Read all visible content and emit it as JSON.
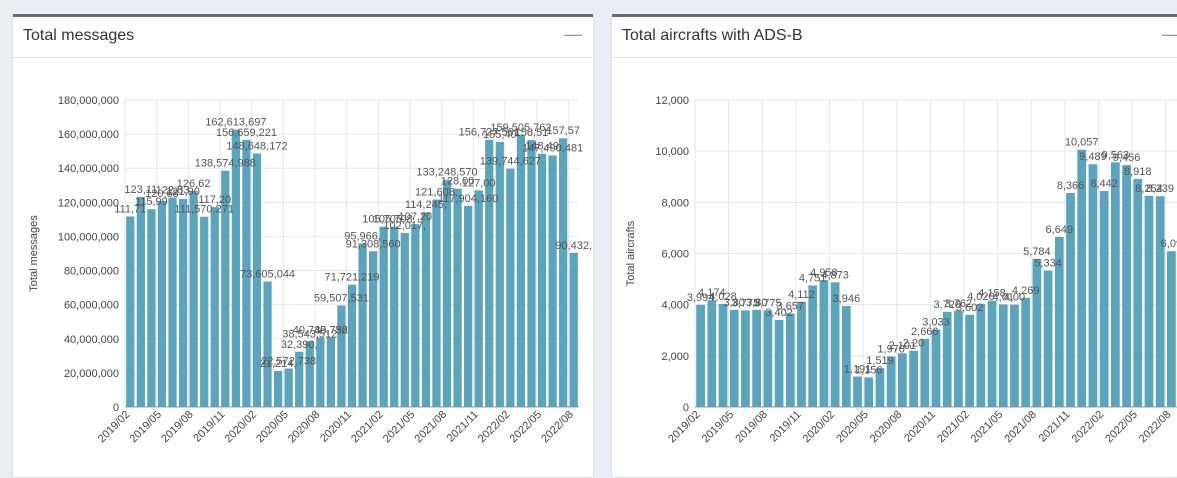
{
  "panels": [
    {
      "title": "Total messages",
      "collapse_icon": "minus-icon"
    },
    {
      "title": "Total aircrafts with ADS-B",
      "collapse_icon": "minus-icon"
    }
  ],
  "colors": {
    "bar": "#5ba4bc",
    "grid": "#e6e6e6",
    "label": "#555555",
    "axis": "#444444"
  },
  "chart_data": [
    {
      "type": "bar",
      "ylabel": "Total messages",
      "ylim": [
        0,
        180000000
      ],
      "yticks": [
        0,
        20000000,
        40000000,
        60000000,
        80000000,
        100000000,
        120000000,
        140000000,
        160000000,
        180000000
      ],
      "ytick_labels": [
        "0",
        "20,000,000",
        "40,000,000",
        "60,000,000",
        "80,000,000",
        "100,000,000",
        "120,000,000",
        "140,000,000",
        "160,000,000",
        "180,000,000"
      ],
      "xtick_labels": [
        "2019/02",
        "2019/05",
        "2019/08",
        "2019/11",
        "2020/02",
        "2020/05",
        "2020/08",
        "2020/11",
        "2021/02",
        "2021/05",
        "2021/08",
        "2021/11",
        "2022/02",
        "2022/05",
        "2022/08"
      ],
      "categories": [
        "2019/02",
        "2019/03",
        "2019/04",
        "2019/05",
        "2019/06",
        "2019/07",
        "2019/08",
        "2019/09",
        "2019/10",
        "2019/11",
        "2019/12",
        "2020/01",
        "2020/02",
        "2020/03",
        "2020/04",
        "2020/05",
        "2020/06",
        "2020/07",
        "2020/08",
        "2020/09",
        "2020/10",
        "2020/11",
        "2020/12",
        "2021/01",
        "2021/02",
        "2021/03",
        "2021/04",
        "2021/05",
        "2021/06",
        "2021/07",
        "2021/08",
        "2021/09",
        "2021/10",
        "2021/11",
        "2021/12",
        "2022/01",
        "2022/02",
        "2022/03",
        "2022/04",
        "2022/05",
        "2022/06",
        "2022/07",
        "2022/08"
      ],
      "values": [
        111710000,
        123110000,
        115990000,
        120680000,
        122831000,
        121900000,
        126620000,
        111570271,
        117200000,
        138574988,
        162613697,
        156659221,
        148648172,
        73605044,
        21214000,
        22572738,
        32390000,
        38543512,
        40735752,
        40736000,
        59507531,
        71721219,
        95966000,
        91308560,
        105705000,
        105708000,
        102017000,
        107200000,
        114245000,
        121608000,
        133248570,
        128000000,
        117904160,
        127000000,
        156727561,
        155400000,
        139744627,
        159505762,
        156512000,
        148497000,
        147490481,
        157575000,
        90432000
      ],
      "labels": [
        "111,71",
        "123,11",
        "115,99",
        "120,68",
        "122,83",
        "121,90",
        "126,62",
        "111,570,271",
        "117,20",
        "138,574,988",
        "162,613,697",
        "156,659,221",
        "148,648,172",
        "73,605,044",
        "21,214,",
        "22,572,738",
        "32,390,",
        "38,543,512",
        "40,735,752",
        "40,736",
        "59,507,531",
        "71,721,219",
        "95,966,",
        "91,308,560",
        "105,705,",
        "105,708,",
        "102,017,",
        "107,20",
        "114,245,",
        "121,608,",
        "133,248,570",
        "128,00",
        "117,904,160",
        "127,00",
        "156,727,561",
        "155,40",
        "139,744,627",
        "159,505,762",
        "156,51",
        "148,49",
        "147,490,481",
        "157,57",
        "90,432,"
      ]
    },
    {
      "type": "bar",
      "ylabel": "Total aircrafts",
      "ylim": [
        0,
        12000
      ],
      "yticks": [
        0,
        2000,
        4000,
        6000,
        8000,
        10000,
        12000
      ],
      "ytick_labels": [
        "0",
        "2,000",
        "4,000",
        "6,000",
        "8,000",
        "10,000",
        "12,000"
      ],
      "xtick_labels": [
        "2019/02",
        "2019/05",
        "2019/08",
        "2019/11",
        "2020/02",
        "2020/05",
        "2020/08",
        "2020/11",
        "2021/02",
        "2021/05",
        "2021/08",
        "2021/11",
        "2022/02",
        "2022/05",
        "2022/08"
      ],
      "categories": [
        "2019/02",
        "2019/03",
        "2019/04",
        "2019/05",
        "2019/06",
        "2019/07",
        "2019/08",
        "2019/09",
        "2019/10",
        "2019/11",
        "2019/12",
        "2020/01",
        "2020/02",
        "2020/03",
        "2020/04",
        "2020/05",
        "2020/06",
        "2020/07",
        "2020/08",
        "2020/09",
        "2020/10",
        "2020/11",
        "2020/12",
        "2021/01",
        "2021/02",
        "2021/03",
        "2021/04",
        "2021/05",
        "2021/06",
        "2021/07",
        "2021/08",
        "2021/09",
        "2021/10",
        "2021/11",
        "2021/12",
        "2022/01",
        "2022/02",
        "2022/03",
        "2022/04",
        "2022/05",
        "2022/06",
        "2022/07",
        "2022/08"
      ],
      "values": [
        3994,
        4174,
        4028,
        3801,
        3775,
        3800,
        3775,
        3402,
        3657,
        4112,
        4751,
        4958,
        4873,
        3946,
        1191,
        1156,
        1519,
        1970,
        2101,
        2200,
        2666,
        3033,
        3720,
        3762,
        3602,
        4020,
        4158,
        4010,
        4000,
        4269,
        5784,
        5334,
        6649,
        8366,
        10057,
        9489,
        8442,
        9563,
        9456,
        8918,
        8254,
        8239,
        6090
      ],
      "labels": [
        "3,994",
        "4,174",
        "4,028",
        "3,80",
        "3,775",
        "3,80",
        "3,775",
        "3,402",
        "3,657",
        "4,112",
        "4,751",
        "4,958",
        "4,873",
        "3,946",
        "1,191",
        "1,156",
        "1,519",
        "1,970",
        "2,101",
        "2,20",
        "2,666",
        "3,033",
        "3,720",
        "3,762",
        "3,602",
        "4,020",
        "4,158",
        "4,01",
        "4,00",
        "4,269",
        "5,784",
        "5,334",
        "6,649",
        "8,366",
        "10,057",
        "9,489",
        "8,442",
        "9,563",
        "9,456",
        "8,918",
        "8,254",
        "8,239",
        "6,09"
      ]
    }
  ]
}
